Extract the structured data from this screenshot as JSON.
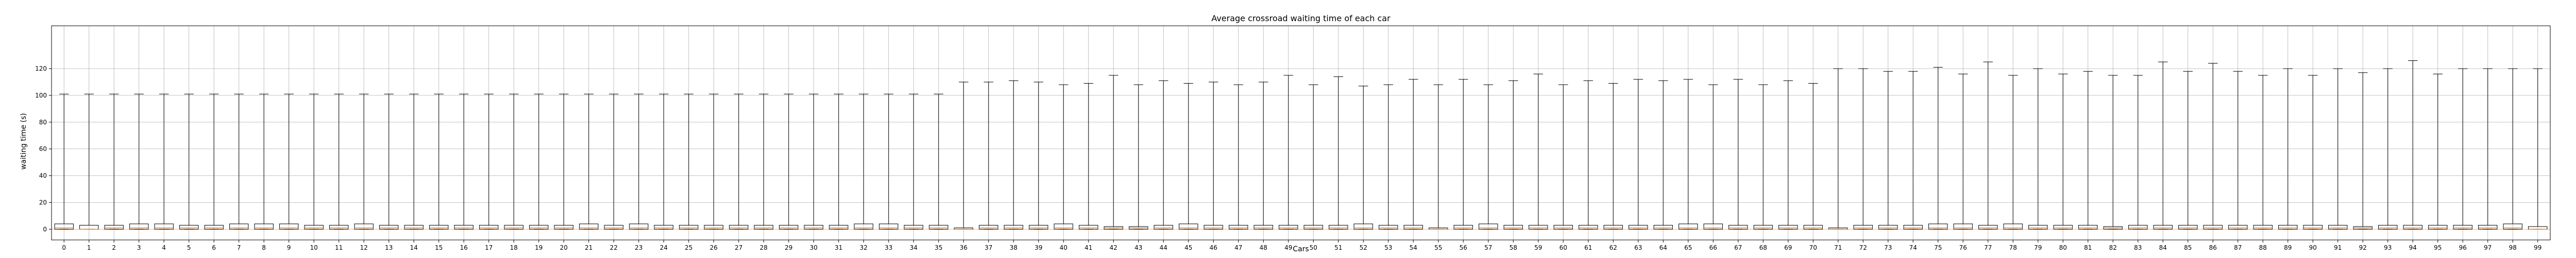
{
  "chart_data": {
    "type": "boxplot",
    "title": "Average crossroad waiting time of each car",
    "xlabel": "Cars",
    "ylabel": "waiting time (s)",
    "ylim": [
      -8,
      152
    ],
    "yticks": [
      0,
      20,
      40,
      60,
      80,
      100,
      120
    ],
    "grid": true,
    "categories": [
      "0",
      "1",
      "2",
      "3",
      "4",
      "5",
      "6",
      "7",
      "8",
      "9",
      "10",
      "11",
      "12",
      "13",
      "14",
      "15",
      "16",
      "17",
      "18",
      "19",
      "20",
      "21",
      "22",
      "23",
      "24",
      "25",
      "26",
      "27",
      "28",
      "29",
      "30",
      "31",
      "32",
      "33",
      "34",
      "35",
      "36",
      "37",
      "38",
      "39",
      "40",
      "41",
      "42",
      "43",
      "44",
      "45",
      "46",
      "47",
      "48",
      "49",
      "50",
      "51",
      "52",
      "53",
      "54",
      "55",
      "56",
      "57",
      "58",
      "59",
      "60",
      "61",
      "62",
      "63",
      "64",
      "65",
      "66",
      "67",
      "68",
      "69",
      "70",
      "71",
      "72",
      "73",
      "74",
      "75",
      "76",
      "77",
      "78",
      "79",
      "80",
      "81",
      "82",
      "83",
      "84",
      "85",
      "86",
      "87",
      "88",
      "89",
      "90",
      "91",
      "92",
      "93",
      "94",
      "95",
      "96",
      "97",
      "98",
      "99"
    ],
    "whisker_max": [
      101,
      101,
      101,
      101,
      101,
      101,
      101,
      101,
      101,
      101,
      101,
      101,
      101,
      101,
      101,
      101,
      101,
      101,
      101,
      101,
      101,
      101,
      101,
      101,
      101,
      101,
      101,
      101,
      101,
      101,
      101,
      101,
      101,
      101,
      101,
      101,
      110,
      110,
      111,
      110,
      108,
      109,
      115,
      108,
      111,
      109,
      110,
      108,
      110,
      115,
      108,
      114,
      107,
      108,
      112,
      108,
      112,
      108,
      111,
      116,
      108,
      111,
      109,
      112,
      111,
      112,
      108,
      112,
      108,
      111,
      109,
      120,
      120,
      118,
      118,
      121,
      116,
      125,
      115,
      120,
      116,
      118,
      115,
      115,
      125,
      118,
      124,
      118,
      115,
      120,
      115,
      120,
      117,
      120,
      126,
      116,
      120,
      120,
      120,
      120
    ],
    "q3": [
      4,
      3,
      3,
      4,
      4,
      3,
      3,
      4,
      4,
      4,
      3,
      3,
      4,
      3,
      3,
      3,
      3,
      3,
      3,
      3,
      3,
      4,
      3,
      4,
      3,
      3,
      3,
      3,
      3,
      3,
      3,
      3,
      4,
      4,
      3,
      3,
      1,
      3,
      3,
      3,
      4,
      3,
      2,
      2,
      3,
      4,
      3,
      3,
      3,
      3,
      3,
      3,
      4,
      3,
      3,
      1,
      3,
      4,
      3,
      3,
      3,
      3,
      3,
      3,
      3,
      4,
      4,
      3,
      3,
      3,
      3,
      1,
      3,
      3,
      3,
      4,
      4,
      3,
      4,
      3,
      3,
      3,
      2,
      3,
      3,
      3,
      3,
      3,
      3,
      3,
      3,
      3,
      2,
      3,
      3,
      3,
      3,
      3,
      4,
      2
    ],
    "median": [
      1,
      0,
      1,
      1,
      1,
      1,
      1,
      1,
      1,
      1,
      1,
      1,
      1,
      1,
      1,
      1,
      1,
      1,
      1,
      1,
      1,
      1,
      1,
      1,
      1,
      1,
      1,
      1,
      1,
      1,
      1,
      1,
      1,
      1,
      1,
      1,
      0,
      1,
      1,
      1,
      1,
      1,
      1,
      1,
      1,
      1,
      1,
      1,
      1,
      1,
      1,
      1,
      1,
      1,
      1,
      0,
      1,
      1,
      1,
      1,
      1,
      1,
      1,
      1,
      1,
      1,
      1,
      1,
      1,
      1,
      1,
      0,
      1,
      1,
      1,
      1,
      1,
      1,
      1,
      1,
      1,
      1,
      1,
      1,
      1,
      1,
      1,
      1,
      1,
      1,
      1,
      1,
      1,
      1,
      1,
      1,
      1,
      1,
      1,
      0
    ],
    "q1": [
      0,
      0,
      0,
      0,
      0,
      0,
      0,
      0,
      0,
      0,
      0,
      0,
      0,
      0,
      0,
      0,
      0,
      0,
      0,
      0,
      0,
      0,
      0,
      0,
      0,
      0,
      0,
      0,
      0,
      0,
      0,
      0,
      0,
      0,
      0,
      0,
      0,
      0,
      0,
      0,
      0,
      0,
      0,
      0,
      0,
      0,
      0,
      0,
      0,
      0,
      0,
      0,
      0,
      0,
      0,
      0,
      0,
      0,
      0,
      0,
      0,
      0,
      0,
      0,
      0,
      0,
      0,
      0,
      0,
      0,
      0,
      0,
      0,
      0,
      0,
      0,
      0,
      0,
      0,
      0,
      0,
      0,
      0,
      0,
      0,
      0,
      0,
      0,
      0,
      0,
      0,
      0,
      0,
      0,
      0,
      0,
      0,
      0,
      0,
      0
    ],
    "whisker_min": [
      0,
      0,
      0,
      0,
      0,
      0,
      0,
      0,
      0,
      0,
      0,
      0,
      0,
      0,
      0,
      0,
      0,
      0,
      0,
      0,
      0,
      0,
      0,
      0,
      0,
      0,
      0,
      0,
      0,
      0,
      0,
      0,
      0,
      0,
      0,
      0,
      0,
      0,
      0,
      0,
      0,
      0,
      0,
      0,
      0,
      0,
      0,
      0,
      0,
      0,
      0,
      0,
      0,
      0,
      0,
      0,
      0,
      0,
      0,
      0,
      0,
      0,
      0,
      0,
      0,
      0,
      0,
      0,
      0,
      0,
      0,
      0,
      0,
      0,
      0,
      0,
      0,
      0,
      0,
      0,
      0,
      0,
      0,
      0,
      0,
      0,
      0,
      0,
      0,
      0,
      0,
      0,
      0,
      0,
      0,
      0,
      0,
      0,
      0,
      0
    ],
    "colors": {
      "box": "#000000",
      "median": "#ff7f0e",
      "grid": "#b0b0b0"
    }
  }
}
